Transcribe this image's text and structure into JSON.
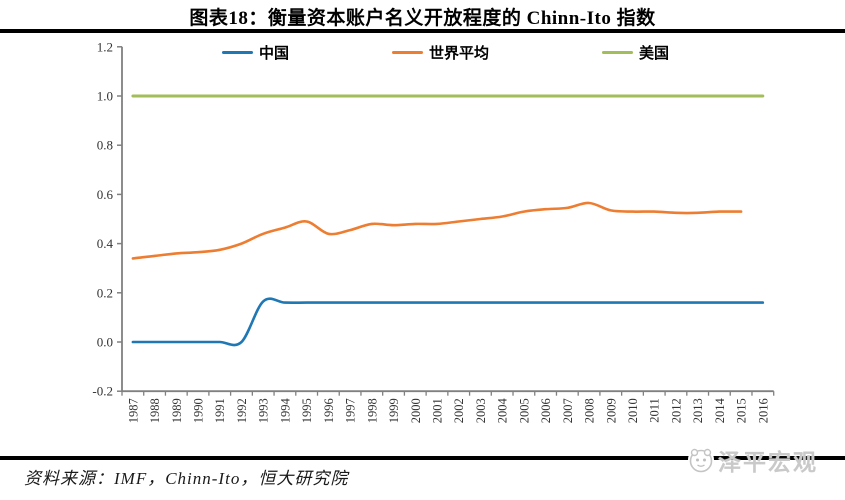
{
  "header": {
    "title": "图表18：衡量资本账户名义开放程度的 Chinn-Ito 指数"
  },
  "footer": {
    "source": "资料来源：IMF，Chinn-Ito，恒大研究院",
    "watermark": "泽平宏观"
  },
  "chart_data": {
    "type": "line",
    "title": "图表18：衡量资本账户名义开放程度的 Chinn-Ito 指数",
    "x": [
      1987,
      1988,
      1989,
      1990,
      1991,
      1992,
      1993,
      1994,
      1995,
      1996,
      1997,
      1998,
      1999,
      2000,
      2001,
      2002,
      2003,
      2004,
      2005,
      2006,
      2007,
      2008,
      2009,
      2010,
      2011,
      2012,
      2013,
      2014,
      2015,
      2016
    ],
    "series": [
      {
        "name": "中国",
        "color": "#1F77B4",
        "values": [
          0.0,
          0.0,
          0.0,
          0.0,
          0.0,
          0.0,
          0.165,
          0.16,
          0.16,
          0.16,
          0.16,
          0.16,
          0.16,
          0.16,
          0.16,
          0.16,
          0.16,
          0.16,
          0.16,
          0.16,
          0.16,
          0.16,
          0.16,
          0.16,
          0.16,
          0.16,
          0.16,
          0.16,
          0.16,
          0.16
        ]
      },
      {
        "name": "世界平均",
        "color": "#ED7D31",
        "values": [
          0.34,
          0.35,
          0.36,
          0.365,
          0.375,
          0.4,
          0.44,
          0.465,
          0.49,
          0.44,
          0.455,
          0.48,
          0.475,
          0.48,
          0.48,
          0.49,
          0.5,
          0.51,
          0.53,
          0.54,
          0.545,
          0.565,
          0.535,
          0.53,
          0.53,
          0.525,
          0.525,
          0.53,
          0.53,
          null
        ]
      },
      {
        "name": "美国",
        "color": "#A2BD5A",
        "values": [
          1.0,
          1.0,
          1.0,
          1.0,
          1.0,
          1.0,
          1.0,
          1.0,
          1.0,
          1.0,
          1.0,
          1.0,
          1.0,
          1.0,
          1.0,
          1.0,
          1.0,
          1.0,
          1.0,
          1.0,
          1.0,
          1.0,
          1.0,
          1.0,
          1.0,
          1.0,
          1.0,
          1.0,
          1.0,
          1.0
        ]
      }
    ],
    "ylim": [
      -0.2,
      1.2
    ],
    "yticks": [
      1.2,
      1.0,
      0.8,
      0.6,
      0.4,
      0.2,
      0.0,
      -0.2
    ],
    "xlabel": "",
    "ylabel": "",
    "grid": false,
    "legend_position": "top",
    "smooth": true,
    "axis_color": "#808080",
    "tick_label_color": "#333333"
  }
}
